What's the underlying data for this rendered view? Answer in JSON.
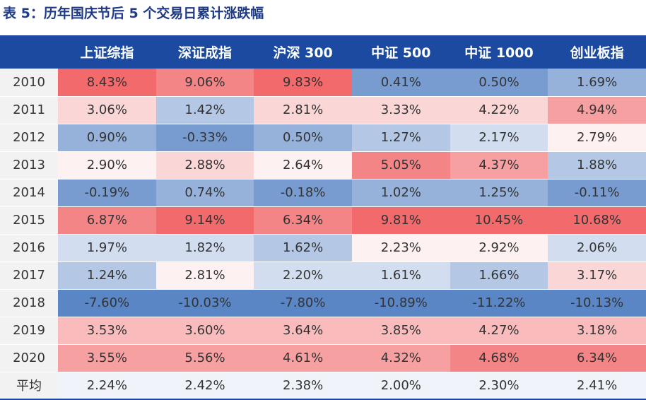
{
  "title": "表 5：历年国庆节后 5 个交易日累计涨跌幅",
  "colors": {
    "header_bg": "#1b4aa0",
    "low": "#5b86c5",
    "mid": "#ffffff",
    "high": "#f26a6c"
  },
  "chart_data": {
    "type": "heatmap",
    "title": "表 5：历年国庆节后 5 个交易日累计涨跌幅",
    "corner": "",
    "columns": [
      "上证综指",
      "深证成指",
      "沪深 300",
      "中证 500",
      "中证 1000",
      "创业板指"
    ],
    "color_scale": "per-column, blue = low, white = middle, red = high",
    "rows": [
      {
        "label": "2010",
        "values": [
          8.43,
          9.06,
          9.83,
          0.41,
          0.5,
          1.69
        ],
        "text": [
          "8.43%",
          "9.06%",
          "9.83%",
          "0.41%",
          "0.50%",
          "1.69%"
        ]
      },
      {
        "label": "2011",
        "values": [
          3.06,
          1.42,
          2.81,
          3.33,
          4.22,
          4.94
        ],
        "text": [
          "3.06%",
          "1.42%",
          "2.81%",
          "3.33%",
          "4.22%",
          "4.94%"
        ]
      },
      {
        "label": "2012",
        "values": [
          0.9,
          -0.33,
          0.5,
          1.27,
          2.17,
          2.79
        ],
        "text": [
          "0.90%",
          "-0.33%",
          "0.50%",
          "1.27%",
          "2.17%",
          "2.79%"
        ]
      },
      {
        "label": "2013",
        "values": [
          2.9,
          2.88,
          2.64,
          5.05,
          4.37,
          1.88
        ],
        "text": [
          "2.90%",
          "2.88%",
          "2.64%",
          "5.05%",
          "4.37%",
          "1.88%"
        ]
      },
      {
        "label": "2014",
        "values": [
          -0.19,
          0.74,
          -0.18,
          1.02,
          1.25,
          -0.11
        ],
        "text": [
          "-0.19%",
          "0.74%",
          "-0.18%",
          "1.02%",
          "1.25%",
          "-0.11%"
        ]
      },
      {
        "label": "2015",
        "values": [
          6.87,
          9.14,
          6.34,
          9.81,
          10.45,
          10.68
        ],
        "text": [
          "6.87%",
          "9.14%",
          "6.34%",
          "9.81%",
          "10.45%",
          "10.68%"
        ]
      },
      {
        "label": "2016",
        "values": [
          1.97,
          1.82,
          1.62,
          2.23,
          2.92,
          2.06
        ],
        "text": [
          "1.97%",
          "1.82%",
          "1.62%",
          "2.23%",
          "2.92%",
          "2.06%"
        ]
      },
      {
        "label": "2017",
        "values": [
          1.24,
          2.81,
          2.2,
          1.61,
          1.66,
          3.17
        ],
        "text": [
          "1.24%",
          "2.81%",
          "2.20%",
          "1.61%",
          "1.66%",
          "3.17%"
        ]
      },
      {
        "label": "2018",
        "values": [
          -7.6,
          -10.03,
          -7.8,
          -10.89,
          -11.22,
          -10.13
        ],
        "text": [
          "-7.60%",
          "-10.03%",
          "-7.80%",
          "-10.89%",
          "-11.22%",
          "-10.13%"
        ]
      },
      {
        "label": "2019",
        "values": [
          3.53,
          3.6,
          3.64,
          3.85,
          4.27,
          3.18
        ],
        "text": [
          "3.53%",
          "3.60%",
          "3.64%",
          "3.85%",
          "4.27%",
          "3.18%"
        ]
      },
      {
        "label": "2020",
        "values": [
          3.55,
          5.56,
          4.61,
          4.32,
          4.68,
          6.34
        ],
        "text": [
          "3.55%",
          "5.56%",
          "4.61%",
          "4.32%",
          "4.68%",
          "6.34%"
        ]
      },
      {
        "label": "平均",
        "values": [
          2.24,
          2.42,
          2.38,
          2.0,
          2.3,
          2.41
        ],
        "text": [
          "2.24%",
          "2.42%",
          "2.38%",
          "2.00%",
          "2.30%",
          "2.41%"
        ]
      }
    ]
  }
}
